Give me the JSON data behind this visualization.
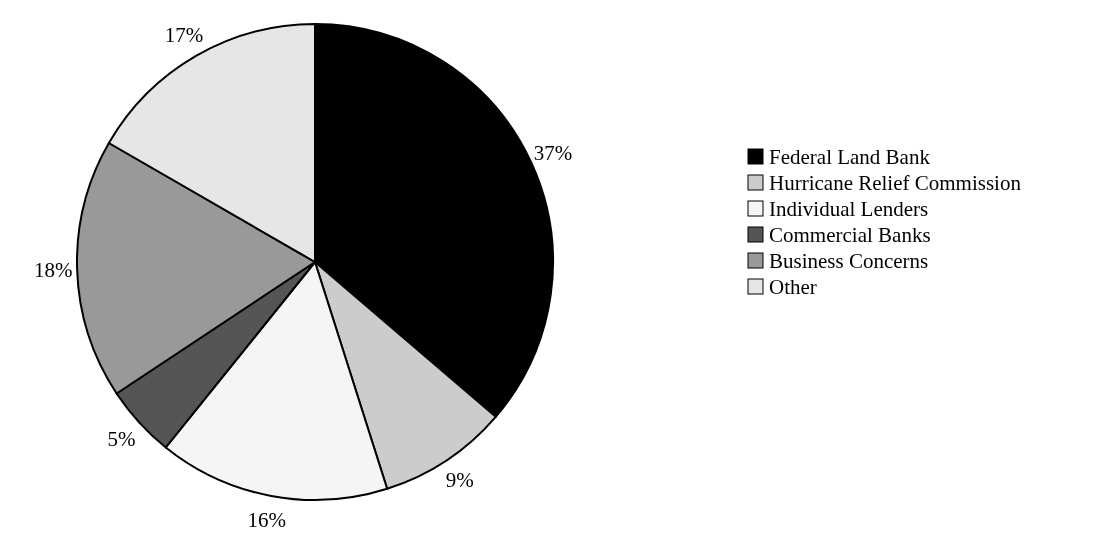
{
  "chart_data": {
    "type": "pie",
    "categories": [
      "Federal Land Bank",
      "Hurricane Relief Commission",
      "Individual Lenders",
      "Commercial Banks",
      "Business Concerns",
      "Other"
    ],
    "values": [
      37,
      9,
      16,
      5,
      18,
      17
    ],
    "colors": [
      "#000000",
      "#cccccc",
      "#f5f5f5",
      "#555555",
      "#999999",
      "#e6e6e6"
    ],
    "value_labels": [
      "37%",
      "9%",
      "16%",
      "5%",
      "18%",
      "17%"
    ],
    "legend": "right"
  }
}
